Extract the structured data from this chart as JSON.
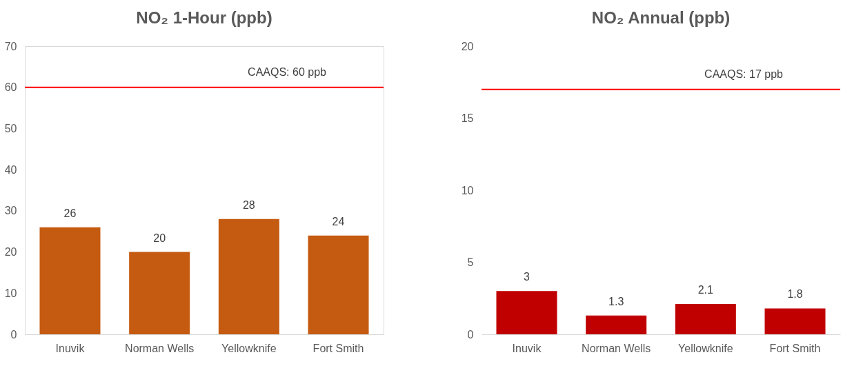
{
  "chart_data": [
    {
      "type": "bar",
      "title": "NO₂ 1-Hour (ppb)",
      "categories": [
        "Inuvik",
        "Norman Wells",
        "Yellowknife",
        "Fort Smith"
      ],
      "values": [
        26,
        20,
        28,
        24
      ],
      "color": "#c55a11",
      "ylim": [
        0,
        70
      ],
      "yticks": [
        0,
        10,
        20,
        30,
        40,
        50,
        60,
        70
      ],
      "grid": false,
      "data_labels": true,
      "ref_lines": [
        {
          "axis": "y",
          "value": 60,
          "label": "CAAQS: 60 ppb",
          "color": "#ff0000"
        }
      ]
    },
    {
      "type": "bar",
      "title": "NO₂ Annual (ppb)",
      "categories": [
        "Inuvik",
        "Norman Wells",
        "Yellowknife",
        "Fort Smith"
      ],
      "values": [
        3,
        1.3,
        2.1,
        1.8
      ],
      "color": "#c00000",
      "ylim": [
        0,
        20
      ],
      "yticks": [
        0,
        5,
        10,
        15,
        20
      ],
      "grid": false,
      "data_labels": true,
      "ref_lines": [
        {
          "axis": "y",
          "value": 17,
          "label": "CAAQS: 17 ppb",
          "color": "#ff0000"
        }
      ]
    }
  ]
}
